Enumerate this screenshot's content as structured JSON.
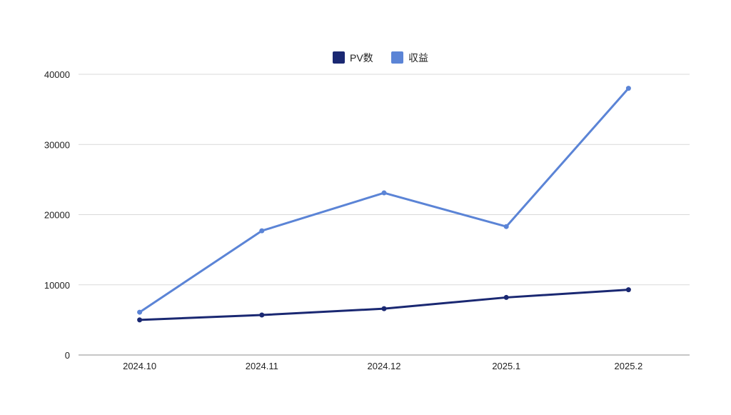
{
  "chart_data": {
    "type": "line",
    "categories": [
      "2024.10",
      "2024.11",
      "2024.12",
      "2025.1",
      "2025.2"
    ],
    "series": [
      {
        "name": "PV数",
        "color": "#1a2872",
        "values": [
          5000,
          5700,
          6600,
          8200,
          9300
        ]
      },
      {
        "name": "収益",
        "color": "#5b84d6",
        "values": [
          6100,
          17700,
          23100,
          18300,
          38000
        ]
      }
    ],
    "yticks": [
      0,
      10000,
      20000,
      30000,
      40000
    ],
    "ylim": [
      0,
      40000
    ],
    "grid": true,
    "legend_position": "top-center"
  }
}
